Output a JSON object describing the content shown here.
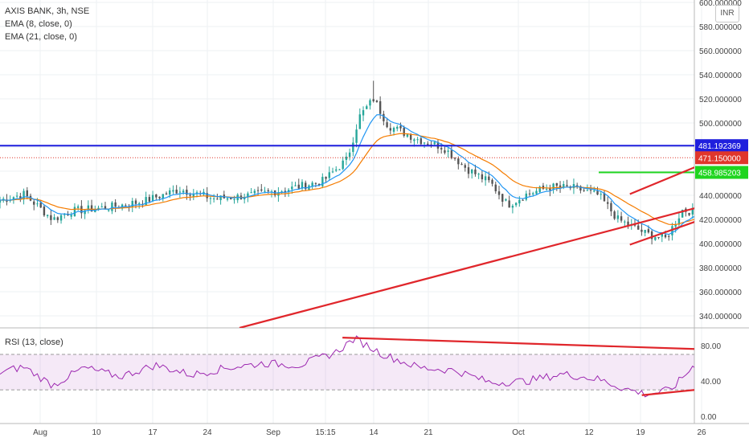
{
  "header": {
    "title": "AXIS BANK, 3h, NSE",
    "ema8_label": "EMA (8, close, 0)",
    "ema21_label": "EMA (21, close, 0)",
    "currency_button": "INR"
  },
  "rsi_panel": {
    "title": "RSI (13, close)"
  },
  "colors": {
    "up": "#26a69a",
    "down": "#555555",
    "ema8": "#2196f3",
    "ema21": "#f57c00",
    "rsi": "#9c27b0",
    "trend": "#e0262b",
    "resistance": "#1f1fdd",
    "support": "#1fd51f",
    "price_label": "#e0362b"
  },
  "chart_data": [
    {
      "type": "candlestick",
      "title": "AXIS BANK, 3h, NSE",
      "ylim": [
        330,
        600
      ],
      "y_ticks": [
        "340.000000",
        "360.000000",
        "380.000000",
        "400.000000",
        "420.000000",
        "440.000000",
        "460.000000",
        "480.000000",
        "500.000000",
        "520.000000",
        "540.000000",
        "560.000000",
        "580.000000",
        "600.000000"
      ],
      "x_ticks": [
        "Aug",
        "10",
        "17",
        "24",
        "Sep",
        "15:15",
        "14",
        "21",
        "Oct",
        "12",
        "19",
        "26"
      ],
      "series": [
        {
          "name": "EMA (8, close, 0)"
        },
        {
          "name": "EMA (21, close, 0)"
        }
      ],
      "horizontal_lines": [
        {
          "value": 481.192369,
          "label": "481.192369"
        },
        {
          "value": 458.985203,
          "label": "458.985203"
        }
      ],
      "last_price": {
        "value": 471.15,
        "label": "471.150000"
      },
      "trend_lines": [
        {
          "from": [
            1.0,
            330
          ],
          "to": [
            4.64,
            520
          ]
        },
        {
          "from": [
            2.63,
            399
          ],
          "to": [
            3.7,
            474
          ]
        },
        {
          "from": [
            2.63,
            441
          ],
          "to": [
            3.7,
            529
          ]
        }
      ],
      "checkpoints": [
        {
          "x": 0.0,
          "close": 436
        },
        {
          "x": 0.1,
          "close": 441
        },
        {
          "x": 0.22,
          "close": 420
        },
        {
          "x": 0.3,
          "close": 427
        },
        {
          "x": 0.45,
          "close": 430
        },
        {
          "x": 0.6,
          "close": 435
        },
        {
          "x": 0.75,
          "close": 445
        },
        {
          "x": 0.9,
          "close": 437
        },
        {
          "x": 1.05,
          "close": 440
        },
        {
          "x": 1.2,
          "close": 445
        },
        {
          "x": 1.35,
          "close": 452
        },
        {
          "x": 1.45,
          "close": 470
        },
        {
          "x": 1.5,
          "close": 505
        },
        {
          "x": 1.56,
          "close": 520
        },
        {
          "x": 1.62,
          "close": 498
        },
        {
          "x": 1.75,
          "close": 486
        },
        {
          "x": 1.85,
          "close": 480
        },
        {
          "x": 1.95,
          "close": 462
        },
        {
          "x": 2.05,
          "close": 450
        },
        {
          "x": 2.12,
          "close": 432
        },
        {
          "x": 2.2,
          "close": 441
        },
        {
          "x": 2.3,
          "close": 447
        },
        {
          "x": 2.4,
          "close": 446
        },
        {
          "x": 2.5,
          "close": 440
        },
        {
          "x": 2.58,
          "close": 420
        },
        {
          "x": 2.7,
          "close": 408
        },
        {
          "x": 2.78,
          "close": 404
        },
        {
          "x": 2.85,
          "close": 428
        },
        {
          "x": 2.95,
          "close": 424
        },
        {
          "x": 3.05,
          "close": 440
        },
        {
          "x": 3.2,
          "close": 450
        },
        {
          "x": 3.35,
          "close": 462
        },
        {
          "x": 3.5,
          "close": 468
        },
        {
          "x": 3.6,
          "close": 474
        },
        {
          "x": 3.66,
          "close": 466
        },
        {
          "x": 3.7,
          "close": 471
        }
      ]
    },
    {
      "type": "line",
      "title": "RSI (13, close)",
      "ylim": [
        -8,
        100
      ],
      "y_ticks": [
        "0.00",
        "40.00",
        "80.00"
      ],
      "bands": [
        30,
        70
      ],
      "series": [
        {
          "name": "RSI (13, close)"
        }
      ],
      "trend_lines": [
        {
          "from": [
            1.43,
            89
          ],
          "to": [
            3.84,
            68
          ]
        },
        {
          "from": [
            2.68,
            24
          ],
          "to": [
            3.8,
            54
          ]
        }
      ],
      "checkpoints": [
        {
          "x": 0.0,
          "y": 50
        },
        {
          "x": 0.1,
          "y": 56
        },
        {
          "x": 0.22,
          "y": 35
        },
        {
          "x": 0.35,
          "y": 55
        },
        {
          "x": 0.5,
          "y": 45
        },
        {
          "x": 0.65,
          "y": 58
        },
        {
          "x": 0.8,
          "y": 47
        },
        {
          "x": 0.95,
          "y": 55
        },
        {
          "x": 1.1,
          "y": 60
        },
        {
          "x": 1.25,
          "y": 58
        },
        {
          "x": 1.4,
          "y": 72
        },
        {
          "x": 1.48,
          "y": 88
        },
        {
          "x": 1.6,
          "y": 70
        },
        {
          "x": 1.75,
          "y": 55
        },
        {
          "x": 1.9,
          "y": 52
        },
        {
          "x": 2.05,
          "y": 38
        },
        {
          "x": 2.2,
          "y": 40
        },
        {
          "x": 2.35,
          "y": 48
        },
        {
          "x": 2.5,
          "y": 42
        },
        {
          "x": 2.6,
          "y": 32
        },
        {
          "x": 2.7,
          "y": 25
        },
        {
          "x": 2.8,
          "y": 30
        },
        {
          "x": 2.9,
          "y": 58
        },
        {
          "x": 3.05,
          "y": 57
        },
        {
          "x": 3.2,
          "y": 63
        },
        {
          "x": 3.35,
          "y": 64
        },
        {
          "x": 3.5,
          "y": 65
        },
        {
          "x": 3.6,
          "y": 67
        },
        {
          "x": 3.66,
          "y": 55
        },
        {
          "x": 3.7,
          "y": 60
        }
      ]
    }
  ]
}
